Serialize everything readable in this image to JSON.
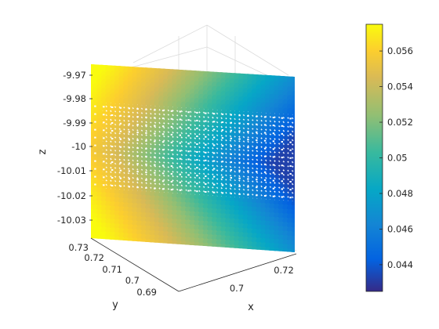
{
  "chart_data": {
    "type": "scatter",
    "title": "",
    "xlabel": "x",
    "ylabel": "y",
    "zlabel": "z",
    "x_ticks": [
      "0.7",
      "0.72"
    ],
    "y_ticks": [
      "0.73",
      "0.72",
      "0.71",
      "0.7",
      "0.69"
    ],
    "z_ticks": [
      "-9.97",
      "-9.98",
      "-9.99",
      "-10",
      "-10.01",
      "-10.02",
      "-10.03"
    ],
    "xlim": [
      0.69,
      0.725
    ],
    "ylim": [
      0.685,
      0.73
    ],
    "zlim": [
      -10.035,
      -9.965
    ],
    "colorbar": {
      "ticks": [
        "0.044",
        "0.046",
        "0.048",
        "0.05",
        "0.052",
        "0.054",
        "0.056"
      ],
      "range": [
        0.0425,
        0.0575
      ],
      "colormap": "parula"
    },
    "grid": true,
    "points": {
      "description": "3D scatter surface of points colored by value",
      "value_range": [
        0.043,
        0.057
      ]
    }
  },
  "colors": {
    "parula": [
      "#352a87",
      "#0363e1",
      "#1485d4",
      "#06a7c6",
      "#38b99e",
      "#92bf73",
      "#d9ba56",
      "#fcce2e",
      "#f9fb0e"
    ]
  }
}
